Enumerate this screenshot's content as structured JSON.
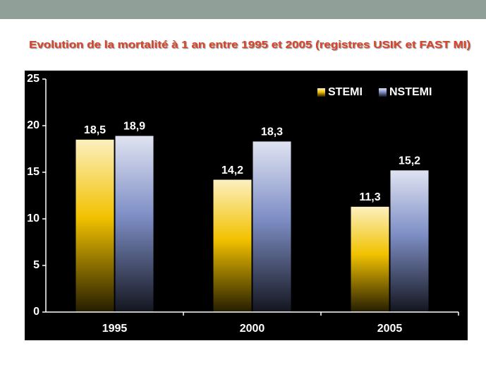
{
  "chart_data": {
    "type": "bar",
    "title": "Evolution de la mortalité à 1 an entre 1995 et 2005 (registres USIK et FAST MI)",
    "categories": [
      "1995",
      "2000",
      "2005"
    ],
    "series": [
      {
        "name": "STEMI",
        "color": "#f2c200",
        "values": [
          18.5,
          14.2,
          11.3
        ],
        "value_labels": [
          "18,5",
          "14,2",
          "11,3"
        ]
      },
      {
        "name": "NSTEMI",
        "color": "#7f8fc6",
        "values": [
          18.9,
          18.3,
          15.2
        ],
        "value_labels": [
          "18,9",
          "18,3",
          "15,2"
        ]
      }
    ],
    "ylim": [
      0,
      25
    ],
    "yticks": [
      0,
      5,
      10,
      15,
      20,
      25
    ],
    "legend": "upper right"
  }
}
